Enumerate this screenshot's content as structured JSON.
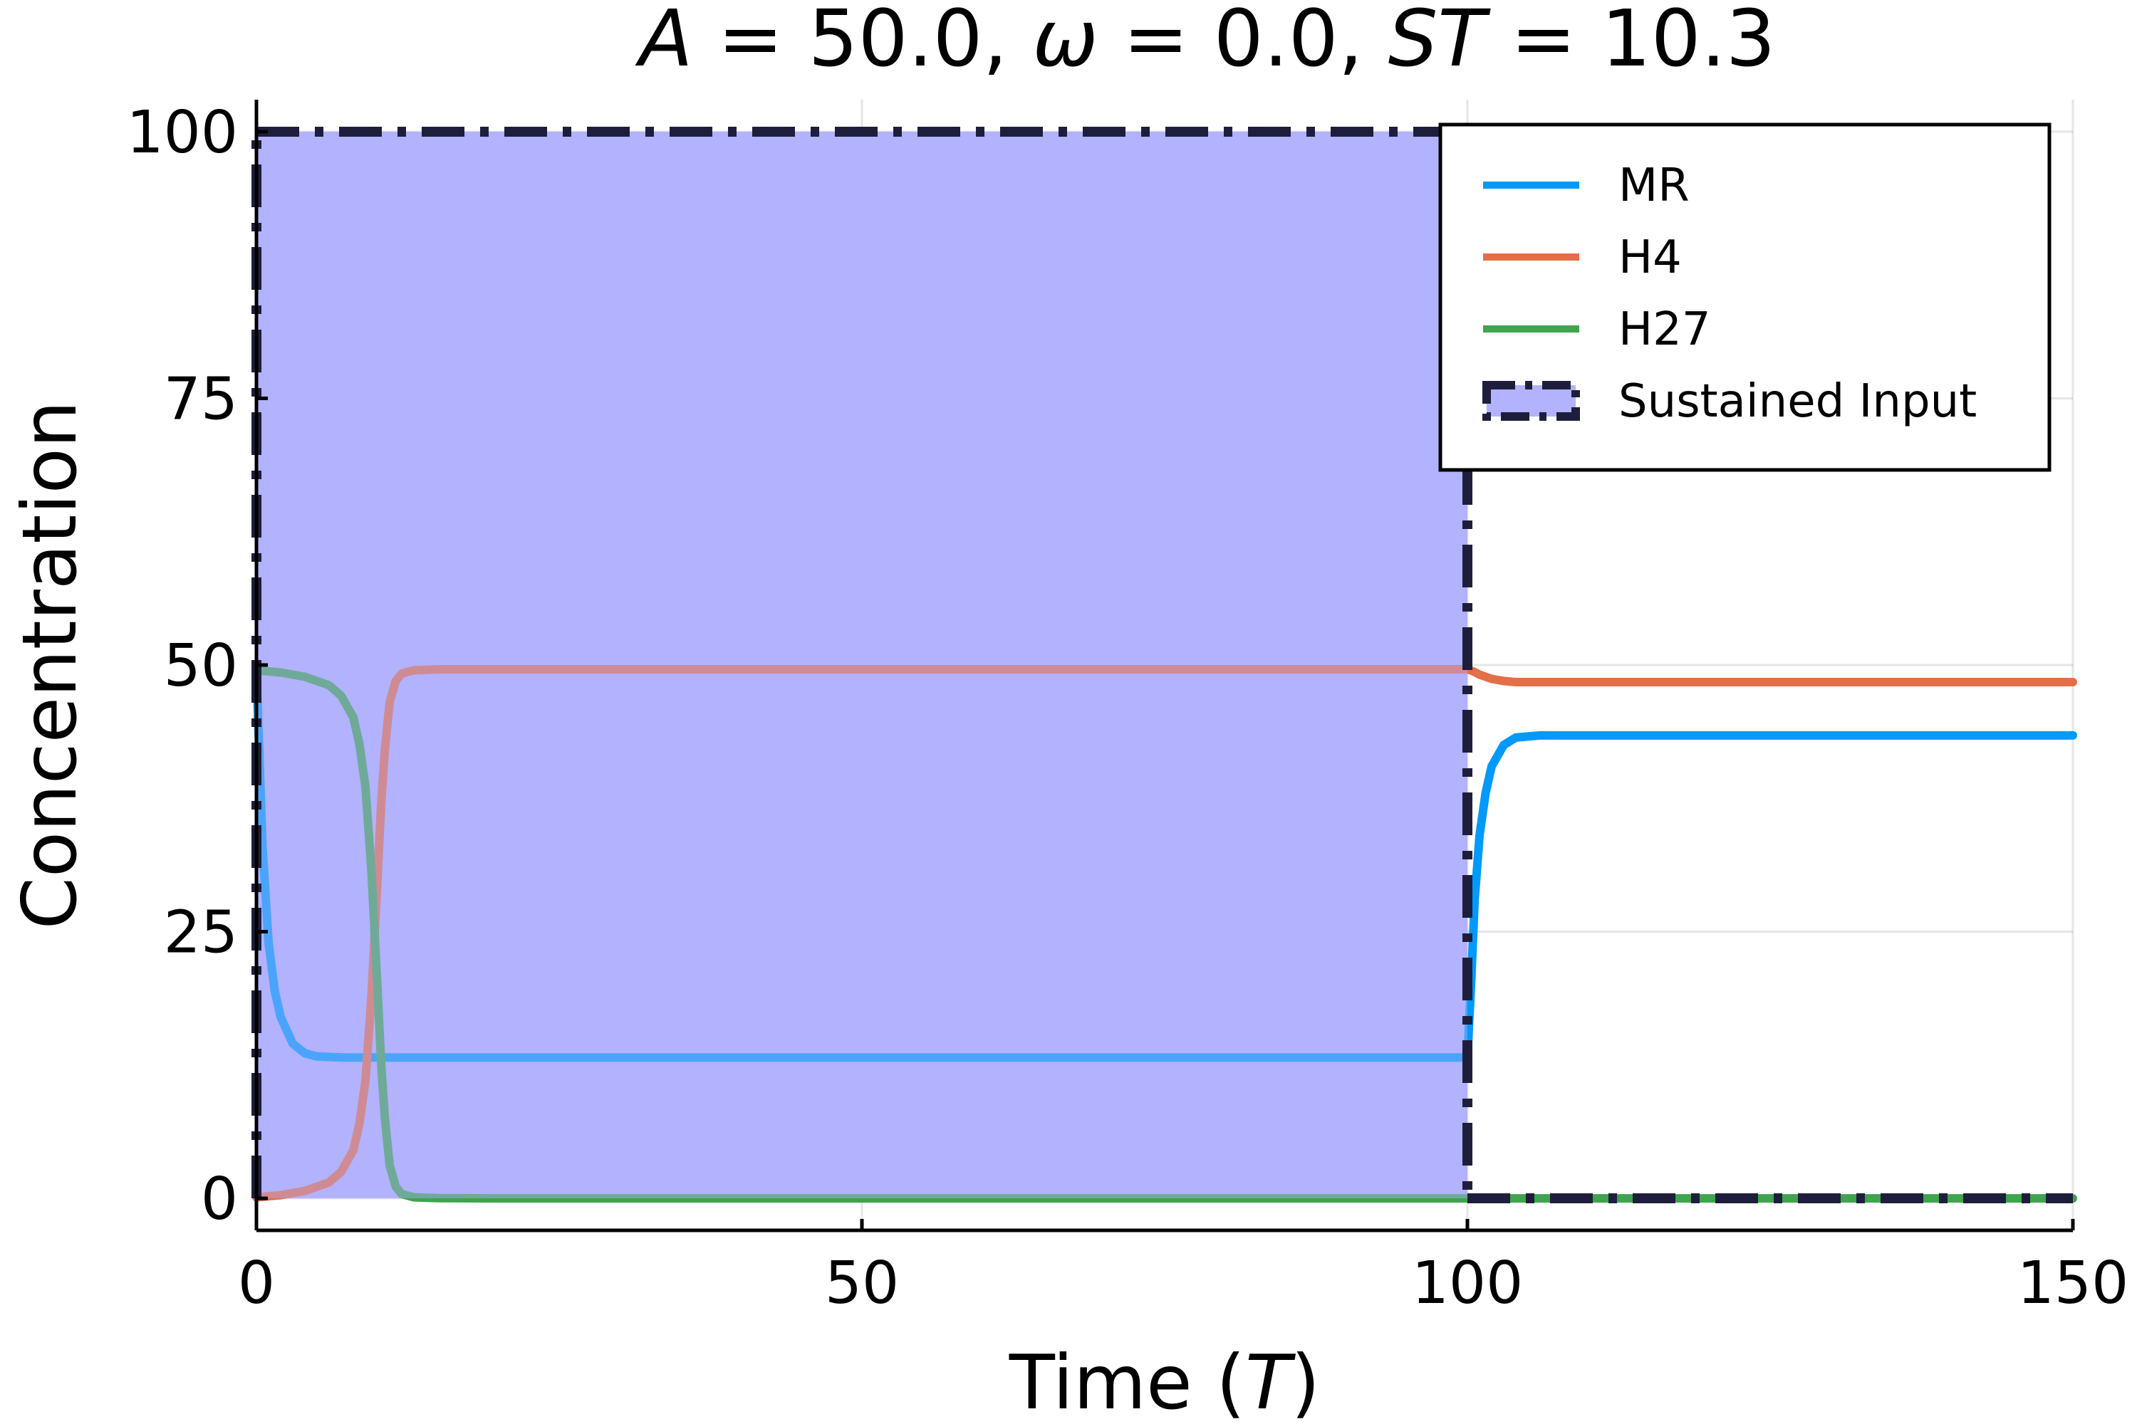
{
  "chart_data": {
    "type": "line",
    "title": "A = 50.0, ω = 0.0, ST = 10.3",
    "title_parts": [
      {
        "text": "A",
        "italic": true
      },
      {
        "text": " = 50.0, ",
        "italic": false
      },
      {
        "text": "ω",
        "italic": true
      },
      {
        "text": " = 0.0, ",
        "italic": false
      },
      {
        "text": "ST",
        "italic": true
      },
      {
        "text": " = 10.3",
        "italic": false
      }
    ],
    "xlabel": "Time (T)",
    "xlabel_parts": [
      {
        "text": "Time (",
        "italic": false
      },
      {
        "text": "T",
        "italic": true
      },
      {
        "text": ")",
        "italic": false
      }
    ],
    "ylabel": "Concentration",
    "xlim": [
      0,
      150
    ],
    "ylim": [
      -3,
      103
    ],
    "xticks": [
      0,
      50,
      100,
      150
    ],
    "yticks": [
      0,
      25,
      50,
      75,
      100
    ],
    "xtick_labels": [
      "0",
      "50",
      "100",
      "150"
    ],
    "ytick_labels": [
      "0",
      "25",
      "50",
      "75",
      "100"
    ],
    "grid": true,
    "legend_position": "top-right",
    "legend": [
      "MR",
      "H4",
      "H27",
      "Sustained Input"
    ],
    "series": [
      {
        "name": "MR",
        "color": "#009AFA",
        "x": [
          0,
          0.5,
          1,
          1.5,
          2,
          3,
          4,
          5,
          7,
          10,
          20,
          40,
          60,
          80,
          99.9,
          100,
          100.3,
          100.6,
          101,
          101.5,
          102,
          103,
          104,
          106,
          110,
          130,
          150
        ],
        "y": [
          49.5,
          33,
          24,
          19.5,
          17,
          14.5,
          13.6,
          13.3,
          13.2,
          13.2,
          13.2,
          13.2,
          13.2,
          13.2,
          13.2,
          13.2,
          20,
          28,
          34,
          38,
          40.5,
          42.5,
          43.2,
          43.4,
          43.4,
          43.4,
          43.4
        ]
      },
      {
        "name": "H4",
        "color": "#E36F47",
        "x": [
          0,
          2,
          4,
          6,
          7,
          8,
          8.5,
          9,
          9.5,
          10,
          10.3,
          10.6,
          11,
          11.5,
          12,
          13,
          15,
          20,
          40,
          60,
          80,
          100,
          100.5,
          101,
          102,
          103,
          104,
          106,
          110,
          150
        ],
        "y": [
          0.1,
          0.3,
          0.7,
          1.5,
          2.5,
          4.5,
          7,
          11,
          19,
          30,
          37,
          42,
          46.5,
          48.5,
          49.2,
          49.5,
          49.6,
          49.6,
          49.6,
          49.6,
          49.6,
          49.6,
          49.4,
          49.1,
          48.7,
          48.5,
          48.4,
          48.4,
          48.4,
          48.4
        ]
      },
      {
        "name": "H27",
        "color": "#3EA44E",
        "x": [
          0,
          2,
          4,
          6,
          7,
          8,
          8.5,
          9,
          9.5,
          10,
          10.3,
          10.6,
          11,
          11.5,
          12,
          13,
          15,
          20,
          40,
          60,
          80,
          100,
          150
        ],
        "y": [
          49.5,
          49.3,
          48.9,
          48.1,
          47.1,
          45.1,
          42.6,
          38.6,
          30.6,
          19.6,
          12.6,
          7.6,
          3.1,
          1.1,
          0.4,
          0.1,
          0.02,
          0,
          0,
          0,
          0,
          0,
          0
        ]
      }
    ],
    "sustained_input": {
      "name": "Sustained Input",
      "x_start": 0,
      "x_end": 100,
      "level": 100,
      "fill_color": "#B2B2FF",
      "edge_color": "#1E1E3C"
    }
  }
}
